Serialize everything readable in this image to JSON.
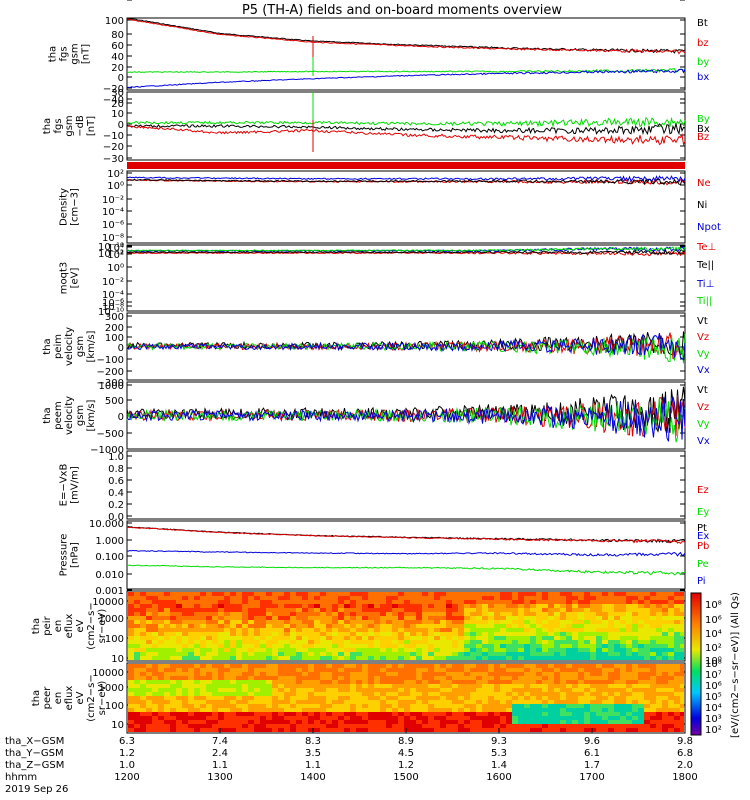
{
  "title": "P5 (TH-A) fields and on-board moments overview",
  "colors": {
    "black": "#000000",
    "red": "#e00000",
    "green": "#00dd00",
    "blue": "#0000dd"
  },
  "panels": [
    {
      "id": "fgs-gsm",
      "ylabel": [
        "tha",
        "fgs",
        "gsm",
        "[nT]"
      ],
      "yticks": [
        "100",
        "80",
        "60",
        "40",
        "20",
        "0",
        "−20",
        "−40"
      ],
      "legend": [
        {
          "t": "Bt",
          "c": "black"
        },
        {
          "t": "bz",
          "c": "red"
        },
        {
          "t": "by",
          "c": "green"
        },
        {
          "t": "bx",
          "c": "blue"
        }
      ]
    },
    {
      "id": "fgs-gsm-detrended",
      "ylabel": [
        "tha",
        "fgs",
        "gsm",
        "−dB",
        "[nT]"
      ],
      "yticks": [
        "30",
        "20",
        "10",
        "0",
        "−10",
        "−20",
        "−30"
      ],
      "legend": [
        {
          "t": "By",
          "c": "green"
        },
        {
          "t": "Bx",
          "c": "black"
        },
        {
          "t": "Bz",
          "c": "red"
        }
      ]
    },
    {
      "id": "density",
      "ylabel": [
        "Density",
        "[cm−3]"
      ],
      "yticks": [
        "10²",
        "10⁰",
        "10⁻²",
        "10⁻⁴",
        "10⁻⁶",
        "10⁻⁸",
        "10⁻¹⁰",
        "10⁻¹²",
        "10⁻¹⁴"
      ],
      "legend": [
        {
          "t": "Ne",
          "c": "red"
        },
        {
          "t": "Ni",
          "c": "black"
        },
        {
          "t": "Npot",
          "c": "blue"
        }
      ]
    },
    {
      "id": "temperature",
      "ylabel": [
        "moqt3",
        "[eV]"
      ],
      "yticks": [
        "10⁴",
        "10²",
        "10⁰",
        "10⁻²",
        "10⁻⁴",
        "10⁻⁶",
        "10⁻⁸",
        "10⁻¹⁰"
      ],
      "legend": [
        {
          "t": "Te⊥",
          "c": "red"
        },
        {
          "t": "Te||",
          "c": "black"
        },
        {
          "t": "Ti⊥",
          "c": "blue"
        },
        {
          "t": "Ti||",
          "c": "green"
        }
      ]
    },
    {
      "id": "peim-velocity",
      "ylabel": [
        "tha",
        "peim",
        "velocity",
        "gsm",
        "[km/s]"
      ],
      "yticks": [
        "300",
        "200",
        "100",
        "0",
        "−100",
        "−200",
        "−300"
      ],
      "legend": [
        {
          "t": "Vt",
          "c": "black"
        },
        {
          "t": "Vz",
          "c": "red"
        },
        {
          "t": "Vy",
          "c": "green"
        },
        {
          "t": "Vx",
          "c": "blue"
        }
      ]
    },
    {
      "id": "peem-velocity",
      "ylabel": [
        "tha",
        "peem",
        "velocity",
        "gsm",
        "[km/s]"
      ],
      "yticks": [
        "1000",
        "500",
        "0",
        "−500",
        "−1000"
      ],
      "legend": [
        {
          "t": "Vt",
          "c": "black"
        },
        {
          "t": "Vz",
          "c": "red"
        },
        {
          "t": "Vy",
          "c": "green"
        },
        {
          "t": "Vx",
          "c": "blue"
        }
      ]
    },
    {
      "id": "efield",
      "ylabel": [
        "E=−VxB",
        "[mV/m]"
      ],
      "yticks": [
        "1.0",
        "0.8",
        "0.6",
        "0.4",
        "0.2",
        "0.0"
      ],
      "legend": [
        {
          "t": "Ez",
          "c": "red"
        },
        {
          "t": "Ey",
          "c": "green"
        },
        {
          "t": "Ex",
          "c": "blue"
        }
      ]
    },
    {
      "id": "pressure",
      "ylabel": [
        "Pressure",
        "[nPa]"
      ],
      "yticks": [
        "10.000",
        "1.000",
        "0.100",
        "0.010",
        "0.001"
      ],
      "legend": [
        {
          "t": "Pt",
          "c": "black"
        },
        {
          "t": "Pb",
          "c": "red"
        },
        {
          "t": "Pe",
          "c": "green"
        },
        {
          "t": "Pi",
          "c": "blue"
        }
      ]
    },
    {
      "id": "peir-spectrogram",
      "ylabel": [
        "tha",
        "peir",
        "en",
        "eflux",
        "eV",
        "(cm2−s−",
        "sr−eV)"
      ],
      "yticks": [
        "10000",
        "1000",
        "100",
        "10"
      ],
      "legend": []
    },
    {
      "id": "peer-spectrogram",
      "ylabel": [
        "tha",
        "peer",
        "en",
        "eflux",
        "eV",
        "(cm2−s−",
        "sr−eV)"
      ],
      "yticks": [
        "10000",
        "1000",
        "100",
        "10"
      ],
      "legend": []
    }
  ],
  "colorbar": {
    "label": "[eV/(cm2−s−sr−eV)] (All Qs)",
    "ticks_top": [
      "10⁸",
      "10⁶",
      "10⁴",
      "10²",
      "10⁰"
    ],
    "ticks_bottom": [
      "10⁸",
      "10⁷",
      "10⁶",
      "10⁵",
      "10⁴",
      "10³",
      "10²"
    ]
  },
  "axis": {
    "rows": [
      {
        "label": "tha_X−GSM",
        "values": [
          "6.3",
          "7.4",
          "8.3",
          "8.9",
          "9.3",
          "9.6",
          "9.8"
        ]
      },
      {
        "label": "tha_Y−GSM",
        "values": [
          "1.2",
          "2.4",
          "3.5",
          "4.5",
          "5.3",
          "6.1",
          "6.8"
        ]
      },
      {
        "label": "tha_Z−GSM",
        "values": [
          "1.0",
          "1.1",
          "1.1",
          "1.2",
          "1.4",
          "1.7",
          "2.0"
        ]
      },
      {
        "label": "hhmm",
        "values": [
          "1200",
          "1300",
          "1400",
          "1500",
          "1600",
          "1700",
          "1800"
        ]
      }
    ],
    "date": "2019 Sep 26"
  },
  "chart_data": {
    "type": "line",
    "title": "P5 (TH-A) fields and on-board moments overview",
    "x": [
      "1200",
      "1300",
      "1400",
      "1500",
      "1600",
      "1700",
      "1800"
    ],
    "panels": [
      {
        "id": "fgs-gsm",
        "ylim": [
          -40,
          100
        ],
        "series": [
          {
            "name": "Bt",
            "values": [
              100,
              70,
              55,
              48,
              42,
              38,
              35
            ]
          },
          {
            "name": "bz",
            "values": [
              98,
              68,
              53,
              46,
              40,
              37,
              34
            ]
          },
          {
            "name": "by",
            "values": [
              -5,
              -5,
              -4,
              -4,
              -4,
              -3,
              -2
            ]
          },
          {
            "name": "bx",
            "values": [
              -35,
              -25,
              -18,
              -12,
              -8,
              -5,
              -3
            ]
          }
        ]
      },
      {
        "id": "fgs-gsm-detrended",
        "ylim": [
          -30,
          30
        ],
        "series": [
          {
            "name": "By",
            "values": [
              3,
              3,
              3,
              2,
              2,
              3,
              4
            ]
          },
          {
            "name": "Bx",
            "values": [
              0,
              0,
              -1,
              -3,
              -4,
              -4,
              -2
            ]
          },
          {
            "name": "Bz",
            "values": [
              0,
              -6,
              -4,
              -8,
              -10,
              -12,
              -12
            ]
          }
        ]
      },
      {
        "id": "density",
        "scale": "log",
        "ylim": [
          1e-14,
          1000
        ],
        "series": [
          {
            "name": "Ne",
            "values": [
              8,
              4,
              3,
              3,
              3,
              2.5,
              2
            ]
          },
          {
            "name": "Ni",
            "values": [
              9,
              5,
              4,
              4,
              4,
              3,
              3
            ]
          },
          {
            "name": "Npot",
            "values": [
              30,
              20,
              15,
              15,
              14,
              15,
              15
            ]
          }
        ]
      },
      {
        "id": "temperature",
        "scale": "log",
        "ylim": [
          1e-10,
          10000
        ],
        "series": [
          {
            "name": "Te⊥",
            "values": [
              200,
              200,
              200,
              200,
              200,
              150,
              150
            ]
          },
          {
            "name": "Te||",
            "values": [
              300,
              300,
              300,
              300,
              300,
              300,
              300
            ]
          },
          {
            "name": "Ti⊥",
            "values": [
              600,
              600,
              600,
              600,
              600,
              1500,
              1200
            ]
          },
          {
            "name": "Ti||",
            "values": [
              700,
              700,
              700,
              700,
              700,
              1600,
              1300
            ]
          }
        ]
      },
      {
        "id": "peim-velocity",
        "ylim": [
          -300,
          300
        ],
        "series": [
          {
            "name": "Vt",
            "values": [
              10,
              10,
              10,
              12,
              15,
              30,
              40
            ]
          },
          {
            "name": "Vz",
            "values": [
              0,
              0,
              0,
              0,
              0,
              5,
              10
            ]
          },
          {
            "name": "Vy",
            "values": [
              0,
              0,
              0,
              0,
              0,
              -10,
              -20
            ]
          },
          {
            "name": "Vx",
            "values": [
              0,
              0,
              0,
              0,
              0,
              5,
              10
            ]
          }
        ]
      },
      {
        "id": "peem-velocity",
        "ylim": [
          -1000,
          1000
        ],
        "series": [
          {
            "name": "Vt",
            "values": [
              60,
              70,
              70,
              80,
              90,
              120,
              150
            ]
          },
          {
            "name": "Vz",
            "values": [
              0,
              0,
              0,
              0,
              0,
              -50,
              -100
            ]
          },
          {
            "name": "Vy",
            "values": [
              0,
              0,
              0,
              0,
              0,
              -50,
              -100
            ]
          },
          {
            "name": "Vx",
            "values": [
              0,
              0,
              0,
              0,
              0,
              -50,
              -100
            ]
          }
        ]
      },
      {
        "id": "efield",
        "ylim": [
          0,
          1.0
        ],
        "series": []
      },
      {
        "id": "pressure",
        "scale": "log",
        "ylim": [
          0.001,
          10
        ],
        "series": [
          {
            "name": "Pt",
            "values": [
              4.5,
              2.2,
              1.4,
              1.1,
              0.9,
              0.75,
              0.65
            ]
          },
          {
            "name": "Pb",
            "values": [
              4.3,
              2.1,
              1.35,
              1.05,
              0.85,
              0.7,
              0.62
            ]
          },
          {
            "name": "Pe",
            "values": [
              0.025,
              0.02,
              0.018,
              0.018,
              0.016,
              0.01,
              0.008
            ]
          },
          {
            "name": "Pi",
            "values": [
              0.18,
              0.15,
              0.13,
              0.12,
              0.13,
              0.1,
              0.11
            ]
          }
        ]
      }
    ]
  }
}
